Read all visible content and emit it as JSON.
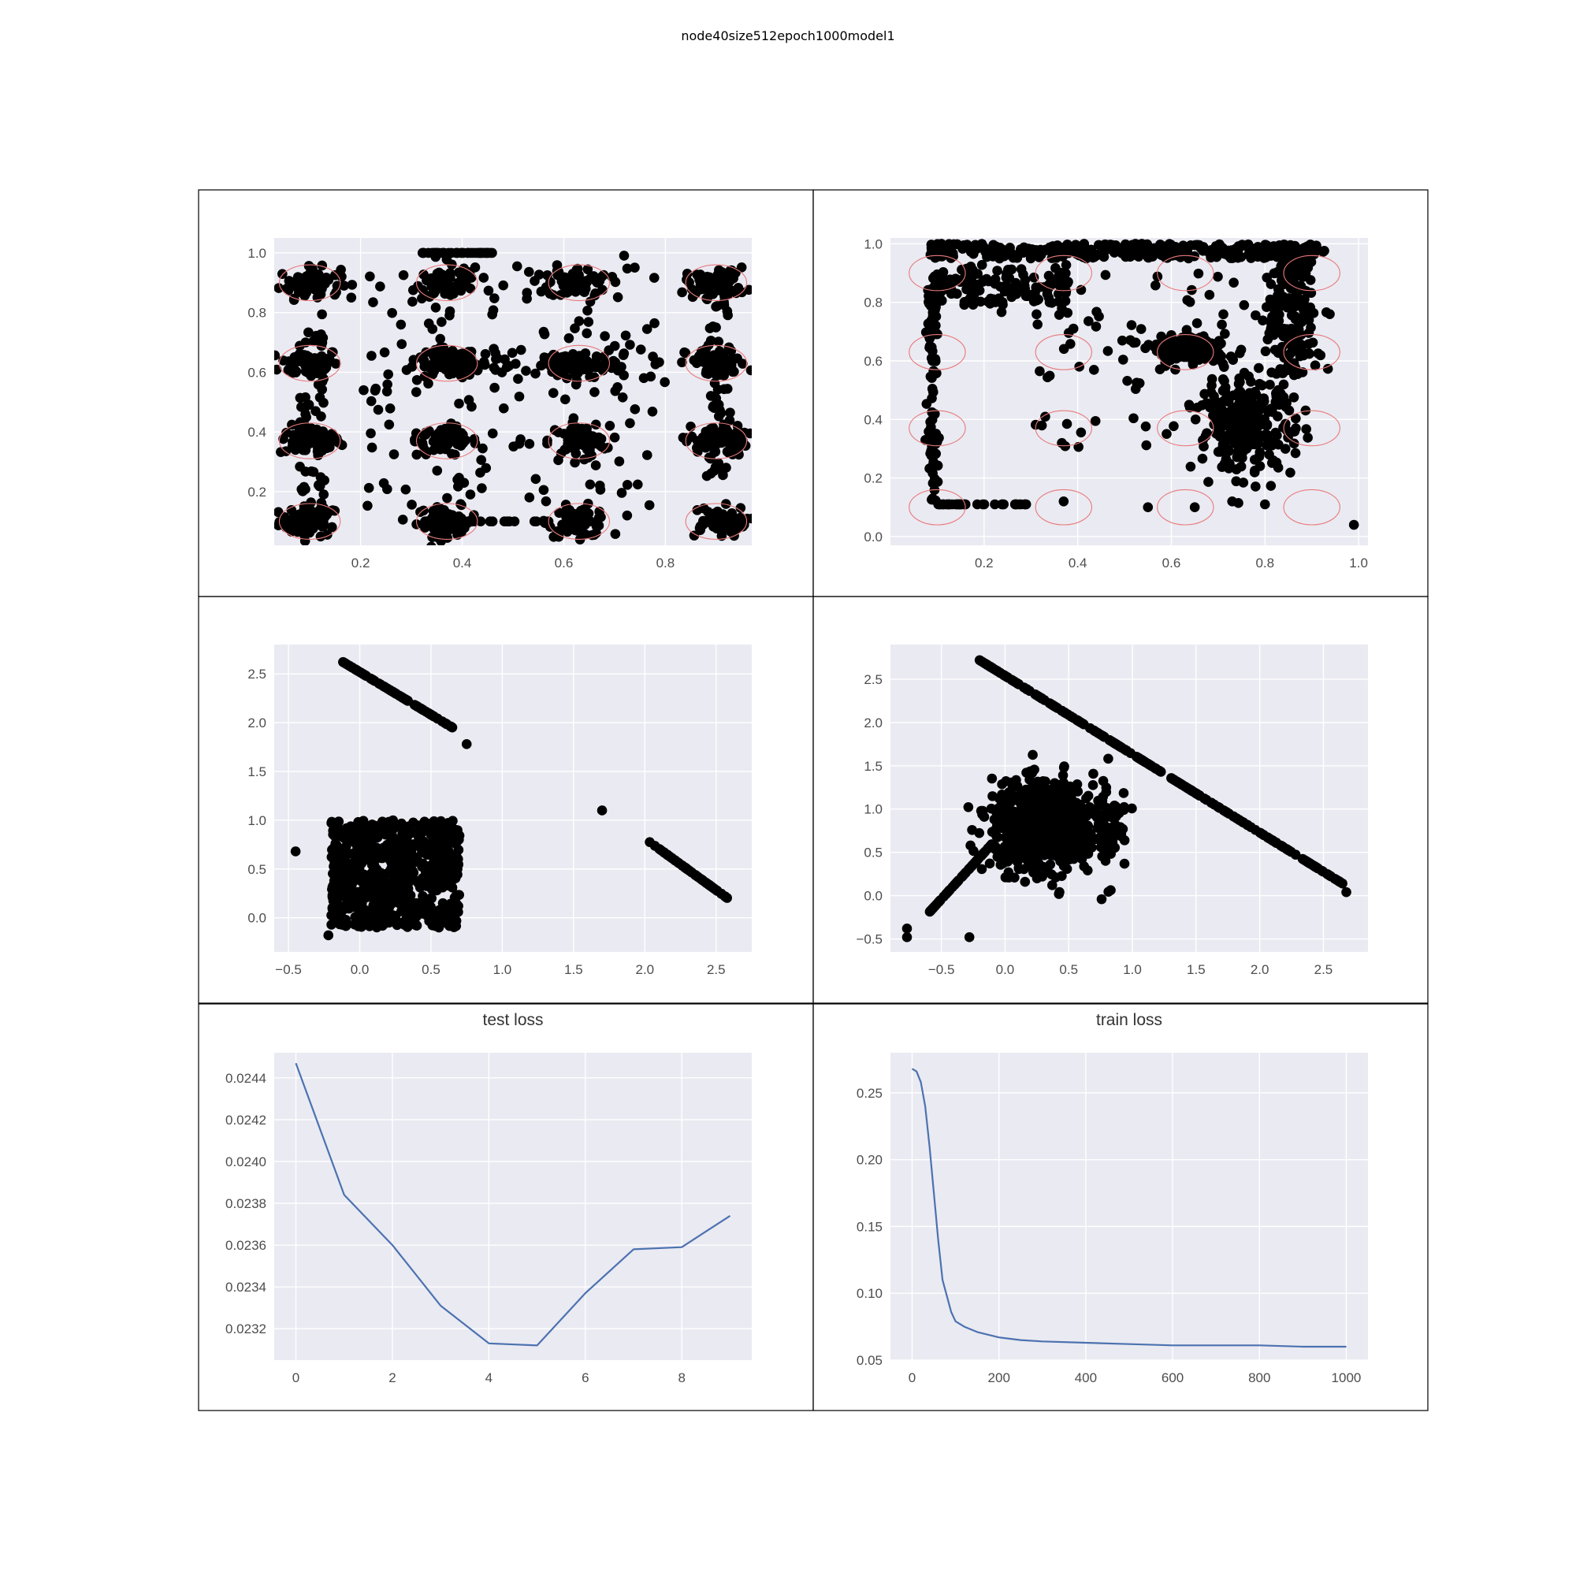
{
  "figure": {
    "title": "node40size512epoch1000model1"
  },
  "chart_data": [
    {
      "id": "clusters-original",
      "type": "scatter",
      "title": "",
      "xlim": [
        0.03,
        0.97
      ],
      "ylim": [
        0.02,
        1.05
      ],
      "xticks": [
        "0.2",
        "0.4",
        "0.6",
        "0.8"
      ],
      "yticks": [
        "0.2",
        "0.4",
        "0.6",
        "0.8",
        "1.0"
      ],
      "grid": true,
      "circle_centers": [
        0.1,
        0.37,
        0.63,
        0.9
      ],
      "circle_rx": 0.06,
      "circle_ry": 0.06,
      "point_color": "#000000",
      "circle_color": "#e87a7a",
      "description": "dense clusters of points around a 4x4 grid of centers, plus a row near y=1.0"
    },
    {
      "id": "clusters-reconstructed",
      "type": "scatter",
      "title": "",
      "xlim": [
        0.0,
        1.02
      ],
      "ylim": [
        -0.03,
        1.02
      ],
      "xticks": [
        "0.2",
        "0.4",
        "0.6",
        "0.8",
        "1.0"
      ],
      "yticks": [
        "0.0",
        "0.2",
        "0.4",
        "0.6",
        "0.8",
        "1.0"
      ],
      "grid": true,
      "circle_centers": [
        0.1,
        0.37,
        0.63,
        0.9
      ],
      "circle_rx": 0.06,
      "circle_ry": 0.06,
      "point_color": "#000000",
      "circle_color": "#e87a7a"
    },
    {
      "id": "latent-test",
      "type": "scatter",
      "title": "",
      "xlim": [
        -0.6,
        2.75
      ],
      "ylim": [
        -0.35,
        2.8
      ],
      "xticks": [
        "-0.5",
        "0.0",
        "0.5",
        "1.0",
        "1.5",
        "2.0",
        "2.5"
      ],
      "yticks": [
        "0.0",
        "0.5",
        "1.0",
        "1.5",
        "2.0",
        "2.5"
      ],
      "grid": true,
      "point_color": "#000000"
    },
    {
      "id": "latent-train",
      "type": "scatter",
      "title": "",
      "xlim": [
        -0.9,
        2.85
      ],
      "ylim": [
        -0.65,
        2.9
      ],
      "xticks": [
        "-0.5",
        "0.0",
        "0.5",
        "1.0",
        "1.5",
        "2.0",
        "2.5"
      ],
      "yticks": [
        "-0.5",
        "0.0",
        "0.5",
        "1.0",
        "1.5",
        "2.0",
        "2.5"
      ],
      "grid": true,
      "point_color": "#000000"
    },
    {
      "id": "test-loss",
      "type": "line",
      "title": "test loss",
      "xlabel": "",
      "ylabel": "",
      "xlim": [
        -0.45,
        9.45
      ],
      "ylim": [
        0.02305,
        0.02452
      ],
      "xticks": [
        "0",
        "2",
        "4",
        "6",
        "8"
      ],
      "yticks": [
        "0.0232",
        "0.0234",
        "0.0236",
        "0.0238",
        "0.0240",
        "0.0242",
        "0.0244"
      ],
      "grid": true,
      "line_color": "#4c72b0",
      "x": [
        0,
        1,
        2,
        3,
        4,
        5,
        6,
        7,
        8,
        9
      ],
      "values": [
        0.02447,
        0.02384,
        0.0236,
        0.02331,
        0.02313,
        0.02312,
        0.02337,
        0.02358,
        0.02359,
        0.02374
      ]
    },
    {
      "id": "train-loss",
      "type": "line",
      "title": "train loss",
      "xlabel": "",
      "ylabel": "",
      "xlim": [
        -50,
        1050
      ],
      "ylim": [
        0.05,
        0.28
      ],
      "xticks": [
        "0",
        "200",
        "400",
        "600",
        "800",
        "1000"
      ],
      "yticks": [
        "0.05",
        "0.10",
        "0.15",
        "0.20",
        "0.25"
      ],
      "grid": true,
      "line_color": "#4c72b0",
      "x": [
        0,
        10,
        20,
        30,
        40,
        50,
        60,
        70,
        80,
        90,
        100,
        120,
        150,
        200,
        250,
        300,
        400,
        500,
        600,
        700,
        800,
        900,
        1000
      ],
      "values": [
        0.268,
        0.266,
        0.258,
        0.24,
        0.21,
        0.175,
        0.14,
        0.11,
        0.098,
        0.086,
        0.079,
        0.075,
        0.071,
        0.067,
        0.065,
        0.064,
        0.063,
        0.062,
        0.061,
        0.061,
        0.061,
        0.06,
        0.06
      ]
    }
  ]
}
